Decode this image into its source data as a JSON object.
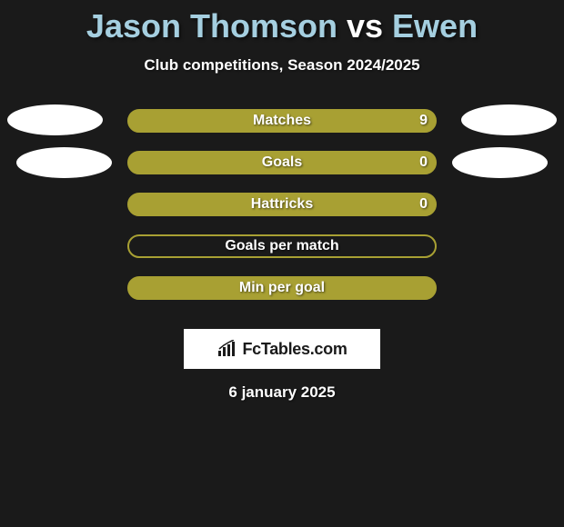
{
  "title": {
    "player1": "Jason Thomson",
    "vs": "vs",
    "player2": "Ewen",
    "color_player": "#a5cfe0",
    "color_vs": "#ffffff"
  },
  "subtitle": "Club competitions, Season 2024/2025",
  "colors": {
    "background": "#1a1a1a",
    "bar_fill": "#a8a033",
    "bar_border": "#a8a033",
    "oval": "#ffffff",
    "text": "#ffffff"
  },
  "stats": [
    {
      "label": "Matches",
      "value": "9",
      "filled": true
    },
    {
      "label": "Goals",
      "value": "0",
      "filled": true
    },
    {
      "label": "Hattricks",
      "value": "0",
      "filled": true
    },
    {
      "label": "Goals per match",
      "value": "",
      "filled": false
    },
    {
      "label": "Min per goal",
      "value": "",
      "filled": true
    }
  ],
  "brand": "FcTables.com",
  "date": "6 january 2025"
}
